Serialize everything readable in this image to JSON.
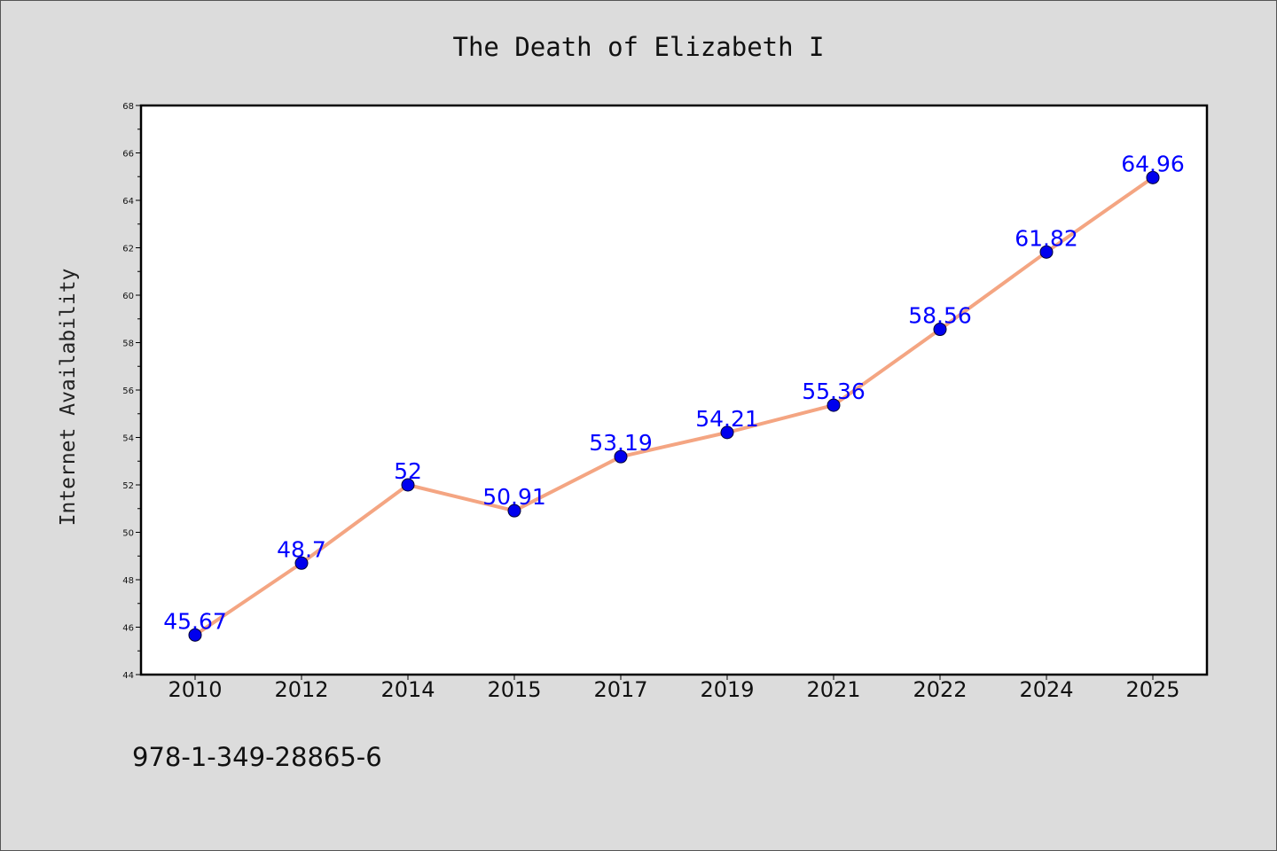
{
  "chart_data": {
    "type": "line",
    "title": "The Death of Elizabeth I",
    "xlabel": "",
    "ylabel": "Internet Availability",
    "categories": [
      "2010",
      "2012",
      "2014",
      "2015",
      "2017",
      "2019",
      "2021",
      "2022",
      "2024",
      "2025"
    ],
    "series": [
      {
        "values": [
          45.67,
          48.7,
          52,
          50.91,
          53.19,
          54.21,
          55.36,
          58.56,
          61.82,
          64.96
        ],
        "line_color": "#f4a582",
        "marker_color": "#0000ee",
        "label_color": "#0000ff"
      }
    ],
    "data_labels": [
      "45.67",
      "48.7",
      "52",
      "50.91",
      "53.19",
      "54.21",
      "55.36",
      "58.56",
      "61.82",
      "64.96"
    ],
    "ylim": [
      44,
      68
    ],
    "yticks": [
      44,
      46,
      48,
      50,
      52,
      54,
      56,
      58,
      60,
      62,
      64,
      66,
      68
    ],
    "ytick_labels": [
      "44",
      "46",
      "48",
      "50",
      "52",
      "54",
      "56",
      "58",
      "60",
      "62",
      "64",
      "66",
      "68"
    ],
    "grid": false,
    "legend": "none"
  },
  "footer": {
    "isbn": "978-1-349-28865-6"
  },
  "colors": {
    "background": "#dcdcdc",
    "plot_background": "#ffffff"
  }
}
